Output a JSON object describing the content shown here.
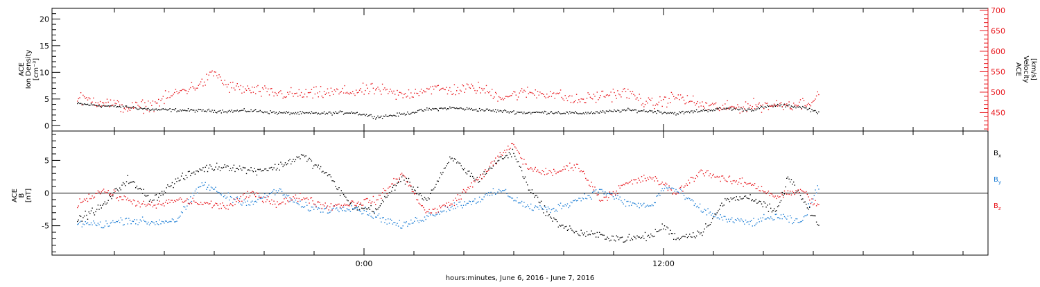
{
  "chart_data": [
    {
      "type": "scatter",
      "panel": "top",
      "ylabel_left": [
        "ACE",
        "Ion Density",
        "[cm⁻³]"
      ],
      "ylabel_right": [
        "ACE",
        "Velocity",
        "[km/s]"
      ],
      "ylim_left": [
        -1,
        22
      ],
      "ylim_right": [
        405,
        705
      ],
      "yticks_left": [
        "0",
        "5",
        "10",
        "15",
        "20"
      ],
      "yticks_right": [
        "450",
        "500",
        "550",
        "600",
        "650",
        "700"
      ],
      "series": [
        {
          "axis": "left",
          "color": "#000000",
          "points": [
            [
              -11.5,
              4.2
            ],
            [
              -10.5,
              3.8
            ],
            [
              -9.5,
              3.6
            ],
            [
              -8.5,
              3.1
            ],
            [
              -7.5,
              3.0
            ],
            [
              -6.5,
              2.9
            ],
            [
              -5.5,
              2.8
            ],
            [
              -4.5,
              2.9
            ],
            [
              -3.5,
              2.5
            ],
            [
              -2.5,
              2.4
            ],
            [
              -1.5,
              2.4
            ],
            [
              -0.5,
              2.6
            ],
            [
              0.5,
              1.7
            ],
            [
              1.5,
              2.2
            ],
            [
              2.5,
              3.1
            ],
            [
              3.5,
              3.4
            ],
            [
              4.5,
              3.1
            ],
            [
              5.5,
              2.8
            ],
            [
              6.5,
              2.5
            ],
            [
              7.5,
              2.6
            ],
            [
              8.5,
              2.4
            ],
            [
              9.5,
              2.6
            ],
            [
              10.5,
              3.0
            ],
            [
              11.5,
              2.8
            ],
            [
              12.5,
              2.4
            ],
            [
              13.5,
              2.9
            ],
            [
              14.5,
              3.3
            ],
            [
              15.5,
              3.1
            ],
            [
              16.5,
              3.9
            ],
            [
              17.5,
              3.6
            ],
            [
              18.2,
              2.6
            ]
          ]
        },
        {
          "axis": "right",
          "color": "#e8151b",
          "points": [
            [
              -11.5,
              485
            ],
            [
              -10.5,
              478
            ],
            [
              -9.5,
              462
            ],
            [
              -8.5,
              470
            ],
            [
              -7.5,
              500
            ],
            [
              -6.5,
              522
            ],
            [
              -6.0,
              550
            ],
            [
              -5.5,
              515
            ],
            [
              -4.5,
              505
            ],
            [
              -3.5,
              498
            ],
            [
              -2.5,
              495
            ],
            [
              -1.5,
              500
            ],
            [
              -0.5,
              502
            ],
            [
              0.5,
              508
            ],
            [
              1.5,
              492
            ],
            [
              2.5,
              510
            ],
            [
              3.5,
              506
            ],
            [
              4.5,
              512
            ],
            [
              5.5,
              490
            ],
            [
              6.5,
              500
            ],
            [
              7.5,
              498
            ],
            [
              8.5,
              480
            ],
            [
              9.5,
              493
            ],
            [
              10.5,
              500
            ],
            [
              11.5,
              470
            ],
            [
              12.5,
              490
            ],
            [
              13.5,
              470
            ],
            [
              14.5,
              462
            ],
            [
              15.5,
              468
            ],
            [
              16.5,
              470
            ],
            [
              17.5,
              473
            ],
            [
              18.2,
              488
            ]
          ]
        }
      ]
    },
    {
      "type": "scatter",
      "panel": "bottom",
      "ylabel": [
        "ACE",
        "B",
        "[nT]"
      ],
      "ylim": [
        -9.5,
        9.5
      ],
      "yticks": [
        "-5",
        "0",
        "5"
      ],
      "legend_placement": "right",
      "legend": [
        {
          "label": "B",
          "sub": "x",
          "color": "#000000"
        },
        {
          "label": "B",
          "sub": "y",
          "color": "#1f7fd6"
        },
        {
          "label": "B",
          "sub": "z",
          "color": "#e8151b"
        }
      ],
      "series": [
        {
          "name": "Bx",
          "color": "#000000",
          "points": [
            [
              -11.5,
              -4.0
            ],
            [
              -10.5,
              -2.0
            ],
            [
              -9.5,
              2.2
            ],
            [
              -8.5,
              -1.0
            ],
            [
              -7.5,
              2.0
            ],
            [
              -6.5,
              3.8
            ],
            [
              -5.5,
              4.2
            ],
            [
              -4.5,
              3.5
            ],
            [
              -3.5,
              4.0
            ],
            [
              -2.5,
              5.8
            ],
            [
              -1.5,
              3.0
            ],
            [
              -0.5,
              -2.0
            ],
            [
              0.5,
              -2.5
            ],
            [
              1.5,
              2.5
            ],
            [
              2.5,
              -1.0
            ],
            [
              3.5,
              5.5
            ],
            [
              4.5,
              2.0
            ],
            [
              5.5,
              5.5
            ],
            [
              6.0,
              6.2
            ],
            [
              6.5,
              1.5
            ],
            [
              7.5,
              -4.0
            ],
            [
              8.5,
              -6.0
            ],
            [
              9.5,
              -6.5
            ],
            [
              10.5,
              -7.0
            ],
            [
              11.5,
              -6.5
            ],
            [
              12.0,
              -5.0
            ],
            [
              12.5,
              -6.8
            ],
            [
              13.5,
              -6.0
            ],
            [
              14.5,
              -1.0
            ],
            [
              15.5,
              -0.5
            ],
            [
              16.5,
              -3.0
            ],
            [
              17.0,
              2.5
            ],
            [
              18.2,
              -5.0
            ]
          ]
        },
        {
          "name": "By",
          "color": "#1f7fd6",
          "points": [
            [
              -11.5,
              -4.5
            ],
            [
              -10.5,
              -4.8
            ],
            [
              -9.5,
              -4.0
            ],
            [
              -8.5,
              -4.5
            ],
            [
              -7.5,
              -4.0
            ],
            [
              -6.5,
              1.5
            ],
            [
              -5.5,
              -0.5
            ],
            [
              -4.5,
              -1.5
            ],
            [
              -3.5,
              0.5
            ],
            [
              -2.5,
              -2.0
            ],
            [
              -1.5,
              -2.5
            ],
            [
              -0.5,
              -2.0
            ],
            [
              0.5,
              -3.5
            ],
            [
              1.5,
              -5.0
            ],
            [
              2.5,
              -3.5
            ],
            [
              3.5,
              -2.0
            ],
            [
              4.5,
              -1.0
            ],
            [
              5.5,
              0.5
            ],
            [
              6.5,
              -2.0
            ],
            [
              7.5,
              -2.5
            ],
            [
              8.5,
              -1.0
            ],
            [
              9.5,
              0.5
            ],
            [
              10.5,
              -1.5
            ],
            [
              11.5,
              -2.0
            ],
            [
              12.0,
              1.0
            ],
            [
              12.5,
              0.5
            ],
            [
              13.5,
              -2.5
            ],
            [
              14.5,
              -4.0
            ],
            [
              15.5,
              -4.5
            ],
            [
              16.5,
              -3.5
            ],
            [
              17.5,
              -4.5
            ],
            [
              18.2,
              1.0
            ]
          ]
        },
        {
          "name": "Bz",
          "color": "#e8151b",
          "points": [
            [
              -11.5,
              -1.5
            ],
            [
              -10.5,
              0.5
            ],
            [
              -9.5,
              -1.0
            ],
            [
              -8.5,
              -2.0
            ],
            [
              -7.5,
              -1.0
            ],
            [
              -6.5,
              -1.5
            ],
            [
              -5.5,
              -2.0
            ],
            [
              -4.5,
              0.0
            ],
            [
              -3.5,
              -1.5
            ],
            [
              -2.5,
              -0.5
            ],
            [
              -1.5,
              -2.0
            ],
            [
              -0.5,
              -1.5
            ],
            [
              0.5,
              -1.0
            ],
            [
              1.5,
              3.0
            ],
            [
              2.5,
              -3.0
            ],
            [
              3.5,
              -1.5
            ],
            [
              4.5,
              2.0
            ],
            [
              5.5,
              6.0
            ],
            [
              6.0,
              7.5
            ],
            [
              6.5,
              4.0
            ],
            [
              7.5,
              3.0
            ],
            [
              8.5,
              4.5
            ],
            [
              9.5,
              -1.0
            ],
            [
              10.5,
              1.5
            ],
            [
              11.5,
              2.5
            ],
            [
              12.5,
              0.0
            ],
            [
              13.5,
              3.5
            ],
            [
              14.5,
              2.0
            ],
            [
              15.5,
              1.5
            ],
            [
              16.5,
              -0.5
            ],
            [
              17.5,
              0.5
            ],
            [
              18.2,
              -2.0
            ]
          ]
        }
      ]
    }
  ],
  "xaxis": {
    "xlim": [
      -12.5,
      25
    ],
    "tick_labels": [
      {
        "x": 0,
        "label": "0:00"
      },
      {
        "x": 12,
        "label": "12:00"
      }
    ],
    "minor_ticks": [
      -10,
      -8,
      -6,
      -4,
      -2,
      2,
      4,
      6,
      8,
      10,
      14,
      16,
      18,
      20,
      22,
      24
    ],
    "xlabel": "hours:minutes, June  6, 2016 - June  7, 2016"
  }
}
